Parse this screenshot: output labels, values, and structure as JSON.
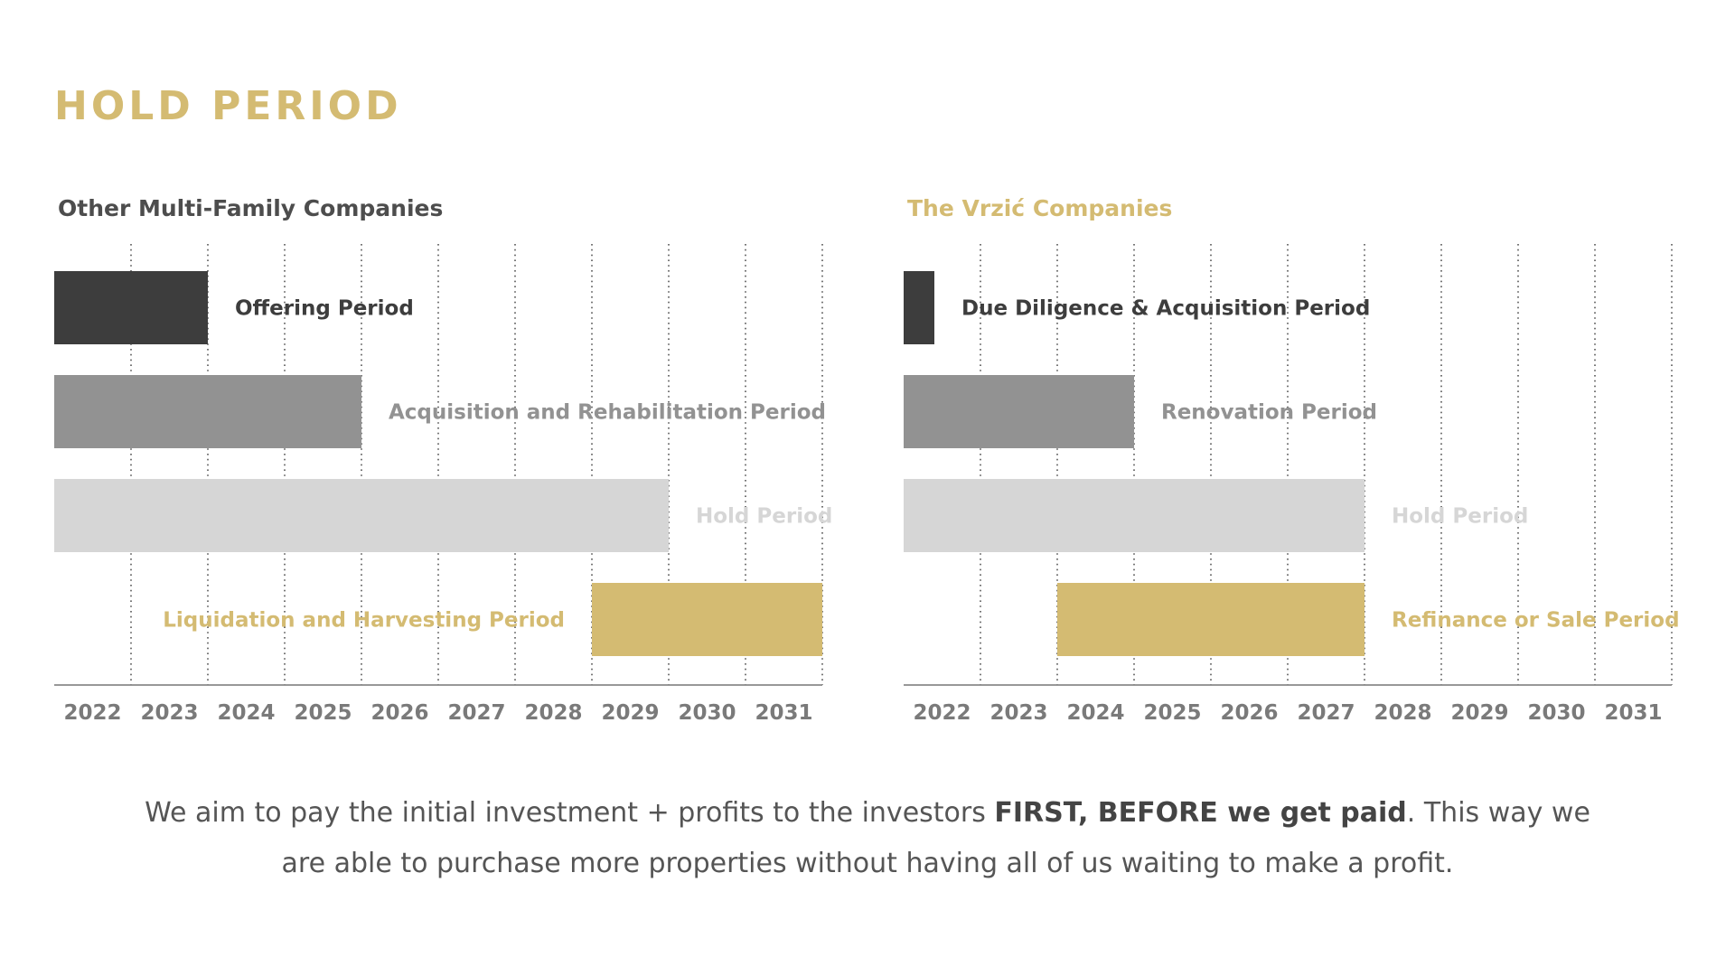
{
  "title": "HOLD PERIOD",
  "colors": {
    "gold": "#d4bb72",
    "dark": "#3d3d3d",
    "mid": "#929292",
    "light": "#d6d6d6",
    "axis_text": "#7a7a7a",
    "grid": "#555555"
  },
  "chart_data": [
    {
      "type": "gantt",
      "title": "Other Multi-Family Companies",
      "categories": [
        "2022",
        "2023",
        "2024",
        "2025",
        "2026",
        "2027",
        "2028",
        "2029",
        "2030",
        "2031"
      ],
      "xlim": [
        2022,
        2032
      ],
      "grid": true,
      "tasks": [
        {
          "label": "Offering Period",
          "start": 2022,
          "end": 2024,
          "color": "#3d3d3d",
          "label_position": "right"
        },
        {
          "label": "Acquisition and Rehabilitation Period",
          "start": 2022,
          "end": 2026,
          "color": "#929292",
          "label_position": "right"
        },
        {
          "label": "Hold Period",
          "start": 2022,
          "end": 2030,
          "color": "#d6d6d6",
          "label_position": "right"
        },
        {
          "label": "Liquidation and Harvesting Period",
          "start": 2029,
          "end": 2032,
          "color": "#d4bb72",
          "label_position": "left"
        }
      ]
    },
    {
      "type": "gantt",
      "title": "The Vrzić Companies",
      "categories": [
        "2022",
        "2023",
        "2024",
        "2025",
        "2026",
        "2027",
        "2028",
        "2029",
        "2030",
        "2031"
      ],
      "xlim": [
        2022,
        2032
      ],
      "grid": true,
      "tasks": [
        {
          "label": "Due Diligence & Acquisition Period",
          "start": 2022,
          "end": 2022.4,
          "color": "#3d3d3d",
          "label_position": "right"
        },
        {
          "label": "Renovation Period",
          "start": 2022,
          "end": 2025,
          "color": "#929292",
          "label_position": "right"
        },
        {
          "label": "Hold Period",
          "start": 2022,
          "end": 2028,
          "color": "#d6d6d6",
          "label_position": "right"
        },
        {
          "label": "Refinance or Sale Period",
          "start": 2024,
          "end": 2028,
          "color": "#d4bb72",
          "label_position": "right"
        }
      ]
    }
  ],
  "footer": {
    "line1_start": "We aim to pay the initial investment + profits to the investors ",
    "line1_bold": "FIRST, BEFORE we get paid",
    "line1_end": ". This way we",
    "line2": "are able to purchase more properties without having all of us waiting to make a profit."
  }
}
